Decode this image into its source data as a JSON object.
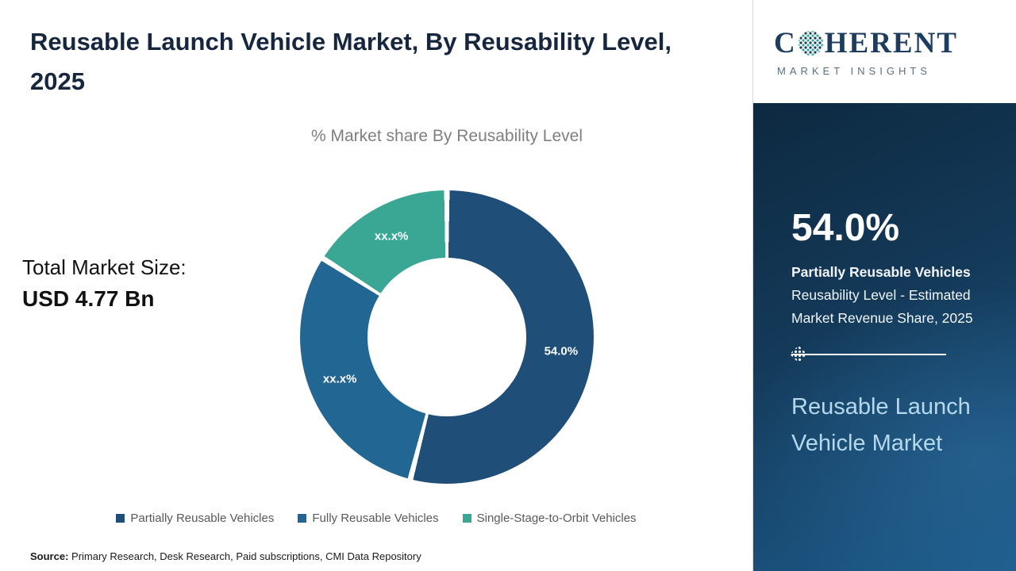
{
  "header": {
    "title": "Reusable Launch Vehicle Market, By Reusability Level, 2025"
  },
  "logo": {
    "word_c": "C",
    "word_rest": "HERENT",
    "subtitle": "MARKET INSIGHTS"
  },
  "main": {
    "chart_subtitle": "% Market share By Reusability Level",
    "total_label": "Total Market Size:",
    "total_value": "USD 4.77 Bn",
    "source_label": "Source:",
    "source_text": " Primary Research, Desk Research, Paid subscriptions, CMI Data Repository"
  },
  "chart_data": {
    "type": "pie",
    "donut": true,
    "title": "% Market share By Reusability Level",
    "start": "top",
    "direction": "clockwise",
    "legend_position": "bottom",
    "segments": [
      {
        "label": "Partially Reusable Vehicles",
        "display": "54.0%",
        "value": 54.0,
        "color": "#1f4e79"
      },
      {
        "label": "Fully Reusable Vehicles",
        "display": "xx.x%",
        "value": 30.0,
        "value_estimated": true,
        "color": "#226694"
      },
      {
        "label": "Single-Stage-to-Orbit Vehicles",
        "display": "xx.x%",
        "value": 16.0,
        "value_estimated": true,
        "color": "#3aa794"
      }
    ]
  },
  "sidebar": {
    "stat_value": "54.0%",
    "stat_bold": "Partially Reusable Vehicles",
    "stat_rest": " Reusability Level - Estimated Market Revenue Share, 2025",
    "market_name": "Reusable Launch Vehicle Market"
  }
}
